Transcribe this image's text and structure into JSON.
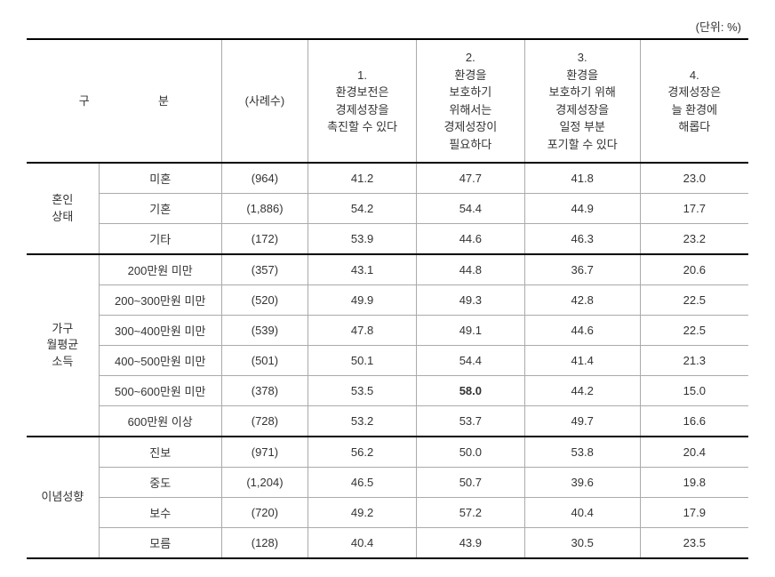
{
  "unit": "(단위: %)",
  "header": {
    "gubun_left": "구",
    "gubun_right": "분",
    "count": "(사례수)",
    "col1": "1.\n환경보전은\n경제성장을\n촉진할 수 있다",
    "col2": "2.\n환경을\n보호하기\n위해서는\n경제성장이\n필요하다",
    "col3": "3.\n환경을\n보호하기 위해\n경제성장을\n일정 부분\n포기할 수 있다",
    "col4": "4.\n경제성장은\n늘 환경에\n해롭다"
  },
  "groups": [
    {
      "name": "혼인\n상태",
      "rows": [
        {
          "label": "미혼",
          "count": "(964)",
          "c1": "41.2",
          "c2": "47.7",
          "c3": "41.8",
          "c4": "23.0"
        },
        {
          "label": "기혼",
          "count": "(1,886)",
          "c1": "54.2",
          "c2": "54.4",
          "c3": "44.9",
          "c4": "17.7"
        },
        {
          "label": "기타",
          "count": "(172)",
          "c1": "53.9",
          "c2": "44.6",
          "c3": "46.3",
          "c4": "23.2"
        }
      ]
    },
    {
      "name": "가구\n월평균\n소득",
      "rows": [
        {
          "label": "200만원 미만",
          "count": "(357)",
          "c1": "43.1",
          "c2": "44.8",
          "c3": "36.7",
          "c4": "20.6"
        },
        {
          "label": "200~300만원 미만",
          "count": "(520)",
          "c1": "49.9",
          "c2": "49.3",
          "c3": "42.8",
          "c4": "22.5"
        },
        {
          "label": "300~400만원 미만",
          "count": "(539)",
          "c1": "47.8",
          "c2": "49.1",
          "c3": "44.6",
          "c4": "22.5"
        },
        {
          "label": "400~500만원 미만",
          "count": "(501)",
          "c1": "50.1",
          "c2": "54.4",
          "c3": "41.4",
          "c4": "21.3"
        },
        {
          "label": "500~600만원 미만",
          "count": "(378)",
          "c1": "53.5",
          "c2": "58.0",
          "c3": "44.2",
          "c4": "15.0",
          "bold_c2": true
        },
        {
          "label": "600만원 이상",
          "count": "(728)",
          "c1": "53.2",
          "c2": "53.7",
          "c3": "49.7",
          "c4": "16.6"
        }
      ]
    },
    {
      "name": "이념성향",
      "rows": [
        {
          "label": "진보",
          "count": "(971)",
          "c1": "56.2",
          "c2": "50.0",
          "c3": "53.8",
          "c4": "20.4"
        },
        {
          "label": "중도",
          "count": "(1,204)",
          "c1": "46.5",
          "c2": "50.7",
          "c3": "39.6",
          "c4": "19.8"
        },
        {
          "label": "보수",
          "count": "(720)",
          "c1": "49.2",
          "c2": "57.2",
          "c3": "40.4",
          "c4": "17.9"
        },
        {
          "label": "모름",
          "count": "(128)",
          "c1": "40.4",
          "c2": "43.9",
          "c3": "30.5",
          "c4": "23.5"
        }
      ]
    }
  ]
}
